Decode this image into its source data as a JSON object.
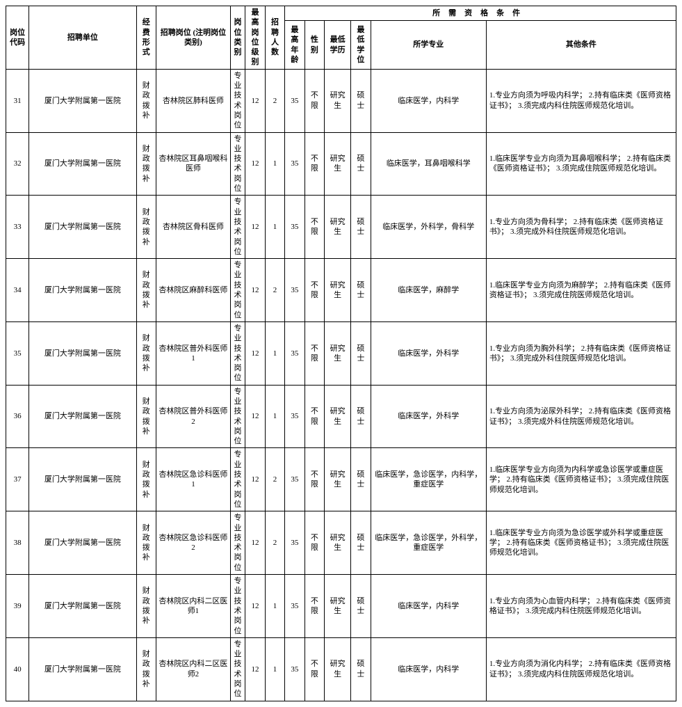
{
  "headers": {
    "code": "岗位代码",
    "unit": "招聘单位",
    "fund": "经费形式",
    "post": "招聘岗位\n(注明岗位类别)",
    "cat": "岗位类别",
    "level": "最高岗位级别",
    "num": "招聘人数",
    "qual_group": "所需资格条件",
    "age": "最高年龄",
    "sex": "性别",
    "edu": "最低学历",
    "deg": "最低学位",
    "major": "所学专业",
    "other": "其他条件"
  },
  "rows": [
    {
      "code": "31",
      "unit": "厦门大学附属第一医院",
      "fund": "财政拨补",
      "post": "杏林院区肺科医师",
      "cat": "专业技术岗位",
      "level": "12",
      "num": "2",
      "age": "35",
      "sex": "不限",
      "edu": "研究生",
      "deg": "硕士",
      "major": "临床医学，内科学",
      "other": "1.专业方向须为呼吸内科学；\n2.持有临床类《医师资格证书》；\n3.须完成内科住院医师规范化培训。"
    },
    {
      "code": "32",
      "unit": "厦门大学附属第一医院",
      "fund": "财政拨补",
      "post": "杏林院区耳鼻咽喉科医师",
      "cat": "专业技术岗位",
      "level": "12",
      "num": "1",
      "age": "35",
      "sex": "不限",
      "edu": "研究生",
      "deg": "硕士",
      "major": "临床医学，耳鼻咽喉科学",
      "other": "1.临床医学专业方向须为耳鼻咽喉科学；\n2.持有临床类《医师资格证书》；\n3.须完成住院医师规范化培训。"
    },
    {
      "code": "33",
      "unit": "厦门大学附属第一医院",
      "fund": "财政拨补",
      "post": "杏林院区骨科医师",
      "cat": "专业技术岗位",
      "level": "12",
      "num": "1",
      "age": "35",
      "sex": "不限",
      "edu": "研究生",
      "deg": "硕士",
      "major": "临床医学，外科学，骨科学",
      "other": "1.专业方向须为骨科学；\n2.持有临床类《医师资格证书》；\n3.须完成外科住院医师规范化培训。"
    },
    {
      "code": "34",
      "unit": "厦门大学附属第一医院",
      "fund": "财政拨补",
      "post": "杏林院区麻醉科医师",
      "cat": "专业技术岗位",
      "level": "12",
      "num": "2",
      "age": "35",
      "sex": "不限",
      "edu": "研究生",
      "deg": "硕士",
      "major": "临床医学，麻醉学",
      "other": "1.临床医学专业方向须为麻醉学；\n2.持有临床类《医师资格证书》；\n3.须完成住院医师规范化培训。"
    },
    {
      "code": "35",
      "unit": "厦门大学附属第一医院",
      "fund": "财政拨补",
      "post": "杏林院区普外科医师1",
      "cat": "专业技术岗位",
      "level": "12",
      "num": "1",
      "age": "35",
      "sex": "不限",
      "edu": "研究生",
      "deg": "硕士",
      "major": "临床医学，外科学",
      "other": "1.专业方向须为胸外科学；\n2.持有临床类《医师资格证书》；\n3.须完成外科住院医师规范化培训。"
    },
    {
      "code": "36",
      "unit": "厦门大学附属第一医院",
      "fund": "财政拨补",
      "post": "杏林院区普外科医师2",
      "cat": "专业技术岗位",
      "level": "12",
      "num": "1",
      "age": "35",
      "sex": "不限",
      "edu": "研究生",
      "deg": "硕士",
      "major": "临床医学，外科学",
      "other": "1.专业方向须为泌尿外科学；\n2.持有临床类《医师资格证书》；\n3.须完成外科住院医师规范化培训。"
    },
    {
      "code": "37",
      "unit": "厦门大学附属第一医院",
      "fund": "财政拨补",
      "post": "杏林院区急诊科医师1",
      "cat": "专业技术岗位",
      "level": "12",
      "num": "2",
      "age": "35",
      "sex": "不限",
      "edu": "研究生",
      "deg": "硕士",
      "major": "临床医学，急诊医学，内科学，重症医学",
      "other": "1.临床医学专业方向须为内科学或急诊医学或重症医学；\n2.持有临床类《医师资格证书》；\n3.须完成住院医师规范化培训。"
    },
    {
      "code": "38",
      "unit": "厦门大学附属第一医院",
      "fund": "财政拨补",
      "post": "杏林院区急诊科医师2",
      "cat": "专业技术岗位",
      "level": "12",
      "num": "2",
      "age": "35",
      "sex": "不限",
      "edu": "研究生",
      "deg": "硕士",
      "major": "临床医学，急诊医学，外科学，重症医学",
      "other": "1.临床医学专业方向须为急诊医学或外科学或重症医学；\n2.持有临床类《医师资格证书》；\n3.须完成住院医师规范化培训。"
    },
    {
      "code": "39",
      "unit": "厦门大学附属第一医院",
      "fund": "财政拨补",
      "post": "杏林院区内科二区医师1",
      "cat": "专业技术岗位",
      "level": "12",
      "num": "1",
      "age": "35",
      "sex": "不限",
      "edu": "研究生",
      "deg": "硕士",
      "major": "临床医学，内科学",
      "other": "1.专业方向须为心血管内科学；\n2.持有临床类《医师资格证书》；\n3.须完成内科住院医师规范化培训。"
    },
    {
      "code": "40",
      "unit": "厦门大学附属第一医院",
      "fund": "财政拨补",
      "post": "杏林院区内科二区医师2",
      "cat": "专业技术岗位",
      "level": "12",
      "num": "1",
      "age": "35",
      "sex": "不限",
      "edu": "研究生",
      "deg": "硕士",
      "major": "临床医学，内科学",
      "other": "1.专业方向须为消化内科学；\n2.持有临床类《医师资格证书》；\n3.须完成内科住院医师规范化培训。"
    }
  ]
}
